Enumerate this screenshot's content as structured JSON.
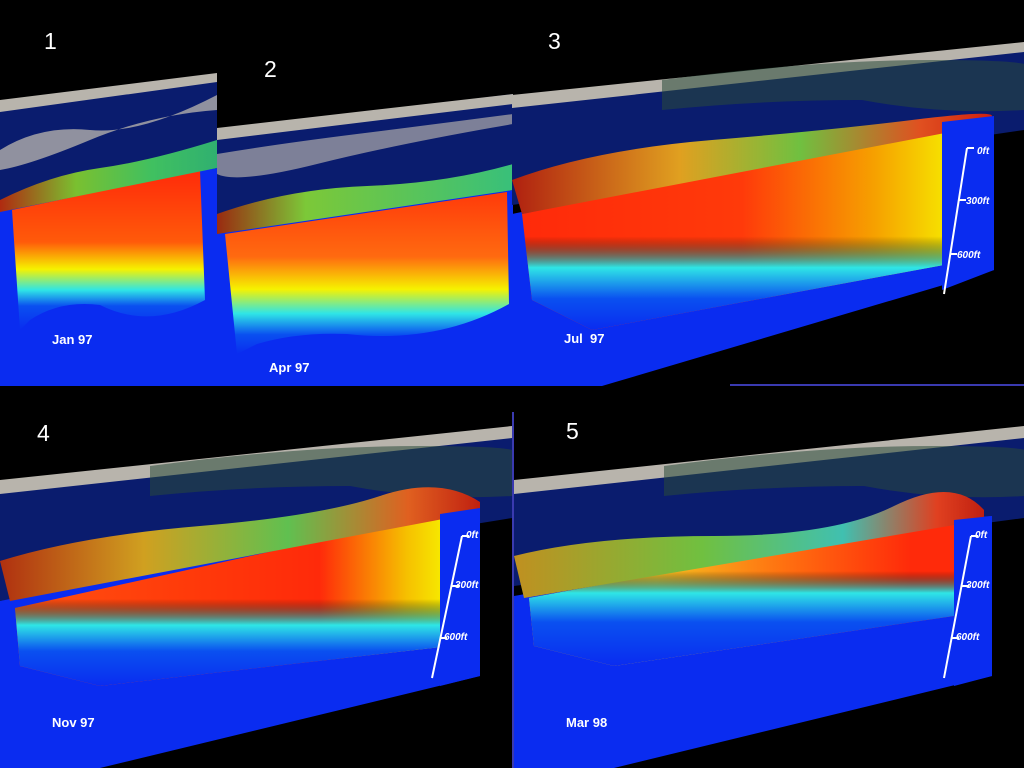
{
  "panels": [
    {
      "number": "1",
      "date": "Jan 97"
    },
    {
      "number": "2",
      "date": "Apr 97"
    },
    {
      "number": "3",
      "date": "Jul  97",
      "depth_labels": [
        "0ft",
        "300ft",
        "600ft"
      ]
    },
    {
      "number": "4",
      "date": "Nov 97",
      "depth_labels": [
        "0ft",
        "300ft",
        "600ft"
      ]
    },
    {
      "number": "5",
      "date": "Mar 98",
      "depth_labels": [
        "0ft",
        "300ft",
        "600ft"
      ]
    }
  ],
  "colors": {
    "background": "#000000",
    "deep": "#0a2cf0",
    "cyan": "#2fe6e6",
    "yellow": "#f6f200",
    "warm": "#ff2a0a",
    "land": "#d9d4c8",
    "ocean": "#0a1c6e"
  }
}
